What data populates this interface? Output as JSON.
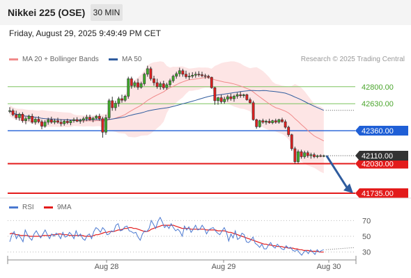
{
  "header": {
    "instrument": "Nikkei 225 (OSE)",
    "timeframe": "30 MIN",
    "timestamp": "Friday, August 29, 2025 9:49:49 PM CET"
  },
  "legend": {
    "ma20": "MA 20 + Bollinger Bands",
    "ma50": "MA 50",
    "credit": "Research © 2025 Trading Central",
    "rsi": "RSI",
    "ma9": "9MA"
  },
  "colors": {
    "ma20": "#f08a8a",
    "bands": "#fde2e2",
    "ma50": "#2f5c9e",
    "resistance": "#7cc35f",
    "pivot": "#1f5fd6",
    "support": "#e31b1b",
    "rsi": "#4a78d0",
    "arrow": "#2f5c9e"
  },
  "chart_data": [
    {
      "type": "candlestick",
      "title": "Nikkei 225 (OSE)",
      "timeframe": "30 MIN",
      "ylim": [
        41700,
        43000
      ],
      "x_ticks": [
        "Aug 28",
        "Aug 29",
        "Aug 30"
      ],
      "last_price": "42110.00",
      "levels": [
        {
          "label": "42800.00",
          "value": 42800,
          "kind": "resistance"
        },
        {
          "label": "42630.00",
          "value": 42630,
          "kind": "resistance"
        },
        {
          "label": "42360.00",
          "value": 42360,
          "kind": "pivot"
        },
        {
          "label": "42030.00",
          "value": 42030,
          "kind": "support"
        },
        {
          "label": "41735.00",
          "value": 41735,
          "kind": "support"
        }
      ],
      "candles": [
        [
          42555,
          42595,
          42535,
          42560
        ],
        [
          42560,
          42580,
          42505,
          42520
        ],
        [
          42520,
          42560,
          42470,
          42490
        ],
        [
          42490,
          42540,
          42460,
          42525
        ],
        [
          42525,
          42545,
          42440,
          42460
        ],
        [
          42460,
          42500,
          42425,
          42480
        ],
        [
          42480,
          42520,
          42455,
          42505
        ],
        [
          42505,
          42530,
          42430,
          42445
        ],
        [
          42445,
          42490,
          42420,
          42475
        ],
        [
          42475,
          42505,
          42435,
          42450
        ],
        [
          42450,
          42470,
          42375,
          42405
        ],
        [
          42405,
          42465,
          42390,
          42445
        ],
        [
          42445,
          42490,
          42420,
          42470
        ],
        [
          42470,
          42500,
          42430,
          42445
        ],
        [
          42445,
          42480,
          42425,
          42460
        ],
        [
          42460,
          42490,
          42430,
          42445
        ],
        [
          42445,
          42475,
          42405,
          42430
        ],
        [
          42430,
          42470,
          42410,
          42455
        ],
        [
          42455,
          42480,
          42425,
          42440
        ],
        [
          42440,
          42470,
          42415,
          42460
        ],
        [
          42460,
          42490,
          42440,
          42470
        ],
        [
          42470,
          42495,
          42445,
          42455
        ],
        [
          42455,
          42480,
          42430,
          42465
        ],
        [
          42465,
          42500,
          42440,
          42480
        ],
        [
          42480,
          42520,
          42455,
          42495
        ],
        [
          42495,
          42520,
          42460,
          42470
        ],
        [
          42470,
          42500,
          42445,
          42485
        ],
        [
          42485,
          42520,
          42470,
          42505
        ],
        [
          42505,
          42530,
          42460,
          42480
        ],
        [
          42480,
          42500,
          42290,
          42345
        ],
        [
          42345,
          42520,
          42320,
          42490
        ],
        [
          42490,
          42680,
          42470,
          42660
        ],
        [
          42660,
          42700,
          42560,
          42590
        ],
        [
          42590,
          42660,
          42560,
          42635
        ],
        [
          42635,
          42700,
          42600,
          42680
        ],
        [
          42680,
          42720,
          42640,
          42665
        ],
        [
          42665,
          42720,
          42650,
          42705
        ],
        [
          42705,
          42900,
          42680,
          42880
        ],
        [
          42880,
          42900,
          42780,
          42810
        ],
        [
          42810,
          42860,
          42790,
          42840
        ],
        [
          42840,
          42880,
          42770,
          42795
        ],
        [
          42795,
          42850,
          42780,
          42830
        ],
        [
          42830,
          42940,
          42810,
          42925
        ],
        [
          42925,
          43010,
          42900,
          42980
        ],
        [
          42980,
          43000,
          42860,
          42880
        ],
        [
          42880,
          42910,
          42810,
          42840
        ],
        [
          42840,
          42880,
          42780,
          42800
        ],
        [
          42800,
          42850,
          42770,
          42830
        ],
        [
          42830,
          42860,
          42770,
          42790
        ],
        [
          42790,
          42840,
          42770,
          42820
        ],
        [
          42820,
          42880,
          42800,
          42860
        ],
        [
          42860,
          42920,
          42840,
          42905
        ],
        [
          42905,
          42950,
          42880,
          42930
        ],
        [
          42930,
          42990,
          42900,
          42960
        ],
        [
          42960,
          42980,
          42900,
          42925
        ],
        [
          42925,
          42960,
          42880,
          42900
        ],
        [
          42900,
          42940,
          42870,
          42905
        ],
        [
          42905,
          42945,
          42885,
          42915
        ],
        [
          42915,
          42950,
          42890,
          42925
        ],
        [
          42925,
          42955,
          42900,
          42920
        ],
        [
          42920,
          42950,
          42895,
          42910
        ],
        [
          42910,
          42930,
          42880,
          42905
        ],
        [
          42905,
          42920,
          42880,
          42895
        ],
        [
          42895,
          42900,
          42780,
          42790
        ],
        [
          42790,
          42800,
          42620,
          42660
        ],
        [
          42660,
          42700,
          42620,
          42690
        ],
        [
          42690,
          42720,
          42630,
          42650
        ],
        [
          42650,
          42700,
          42630,
          42675
        ],
        [
          42675,
          42720,
          42650,
          42700
        ],
        [
          42700,
          42730,
          42660,
          42680
        ],
        [
          42680,
          42720,
          42650,
          42705
        ],
        [
          42705,
          42740,
          42680,
          42720
        ],
        [
          42720,
          42750,
          42690,
          42710
        ],
        [
          42710,
          42730,
          42690,
          42720
        ],
        [
          42720,
          42730,
          42660,
          42670
        ],
        [
          42670,
          42690,
          42630,
          42640
        ],
        [
          42640,
          42660,
          42460,
          42470
        ],
        [
          42470,
          42480,
          42380,
          42400
        ],
        [
          42400,
          42470,
          42390,
          42460
        ],
        [
          42460,
          42480,
          42430,
          42445
        ],
        [
          42445,
          42470,
          42420,
          42455
        ],
        [
          42455,
          42480,
          42430,
          42440
        ],
        [
          42440,
          42470,
          42425,
          42460
        ],
        [
          42460,
          42480,
          42430,
          42445
        ],
        [
          42445,
          42480,
          42430,
          42470
        ],
        [
          42470,
          42490,
          42440,
          42450
        ],
        [
          42450,
          42470,
          42380,
          42395
        ],
        [
          42395,
          42410,
          42300,
          42320
        ],
        [
          42320,
          42330,
          42160,
          42180
        ],
        [
          42180,
          42200,
          42030,
          42050
        ],
        [
          42050,
          42170,
          42030,
          42150
        ],
        [
          42150,
          42170,
          42080,
          42100
        ],
        [
          42100,
          42160,
          42080,
          42140
        ],
        [
          42140,
          42160,
          42090,
          42110
        ],
        [
          42110,
          42140,
          42080,
          42120
        ],
        [
          42120,
          42140,
          42085,
          42100
        ],
        [
          42100,
          42120,
          42085,
          42110
        ],
        [
          42110,
          42125,
          42095,
          42105
        ],
        [
          42105,
          42120,
          42095,
          42110
        ]
      ]
    },
    {
      "type": "line",
      "title": "RSI",
      "ylim": [
        20,
        80
      ],
      "y_ticks": [
        70,
        50,
        30
      ],
      "series": [
        {
          "name": "RSI",
          "values": [
            43,
            52,
            56,
            47,
            52,
            48,
            43,
            58,
            52,
            48,
            45,
            53,
            57,
            52,
            48,
            53,
            58,
            52,
            47,
            53,
            50,
            54,
            52,
            47,
            55,
            49,
            50,
            55,
            52,
            47,
            57,
            50,
            53,
            47,
            45,
            51,
            53,
            47,
            56,
            61,
            59,
            55,
            61,
            58,
            52,
            53,
            57,
            56,
            64,
            66,
            57,
            58,
            62,
            63,
            57,
            56,
            54,
            55,
            49,
            45,
            53,
            57,
            56,
            60,
            70,
            65,
            60,
            69,
            74,
            68,
            61,
            64,
            60,
            66,
            61,
            57,
            59,
            56,
            50,
            63,
            58,
            62,
            55,
            59,
            64,
            58,
            59,
            64,
            60,
            53,
            58,
            60,
            61,
            57,
            54,
            52,
            57,
            61,
            55,
            44,
            53,
            48,
            57,
            46,
            48,
            54,
            52,
            43,
            42,
            45,
            49,
            41,
            39,
            36,
            40,
            34,
            34,
            39,
            42,
            37,
            35,
            40,
            37,
            34,
            33,
            38,
            35,
            36,
            32,
            31,
            33,
            29,
            26,
            30,
            32,
            28,
            33,
            30,
            27,
            33,
            30,
            32,
            33
          ]
        },
        {
          "name": "9MA",
          "values": [
            53,
            54,
            53,
            52,
            52,
            51,
            51,
            51,
            51,
            50,
            50,
            50,
            50,
            50,
            50,
            51,
            51,
            51,
            51,
            52,
            52,
            52,
            53,
            53,
            52,
            52,
            52,
            51,
            51,
            51,
            51,
            51,
            51,
            51,
            50,
            50,
            50,
            50,
            51,
            52,
            52,
            53,
            54,
            55,
            55,
            56,
            56,
            56,
            57,
            58,
            58,
            59,
            60,
            60,
            61,
            61,
            60,
            60,
            59,
            58,
            57,
            56,
            56,
            57,
            59,
            60,
            61,
            62,
            63,
            64,
            64,
            64,
            64,
            64,
            64,
            63,
            62,
            61,
            60,
            60,
            60,
            60,
            59,
            59,
            59,
            59,
            59,
            59,
            59,
            58,
            58,
            58,
            58,
            58,
            57,
            57,
            57,
            57,
            56,
            55,
            55,
            54,
            53,
            52,
            51,
            50,
            49,
            48,
            47,
            46,
            45,
            44,
            43,
            42,
            41,
            40,
            40,
            39,
            39,
            38,
            38,
            37,
            37,
            37,
            36,
            36,
            35,
            35,
            35,
            34,
            34,
            33,
            33,
            32,
            32,
            32,
            31,
            31,
            31,
            31,
            30,
            30,
            30
          ]
        }
      ]
    }
  ]
}
